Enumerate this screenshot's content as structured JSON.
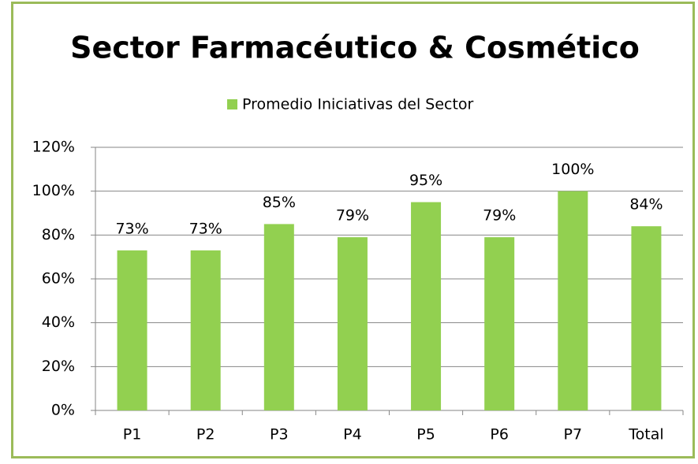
{
  "chart_data": {
    "type": "bar",
    "title": "Sector Farmacéutico & Cosmético",
    "categories": [
      "P1",
      "P2",
      "P3",
      "P4",
      "P5",
      "P6",
      "P7",
      "Total"
    ],
    "series": [
      {
        "name": "Promedio Iniciativas del Sector",
        "color": "#92d050",
        "values": [
          73,
          73,
          85,
          79,
          95,
          79,
          100,
          84
        ],
        "value_labels": [
          "73%",
          "73%",
          "85%",
          "79%",
          "95%",
          "79%",
          "100%",
          "84%"
        ]
      }
    ],
    "ylim": [
      0,
      120
    ],
    "yticks": [
      {
        "value": 0,
        "label": "0%"
      },
      {
        "value": 20,
        "label": "20%"
      },
      {
        "value": 40,
        "label": "40%"
      },
      {
        "value": 60,
        "label": "60%"
      },
      {
        "value": 80,
        "label": "80%"
      },
      {
        "value": 100,
        "label": "100%"
      },
      {
        "value": 120,
        "label": "120%"
      }
    ],
    "grid": true,
    "legend": "top"
  }
}
